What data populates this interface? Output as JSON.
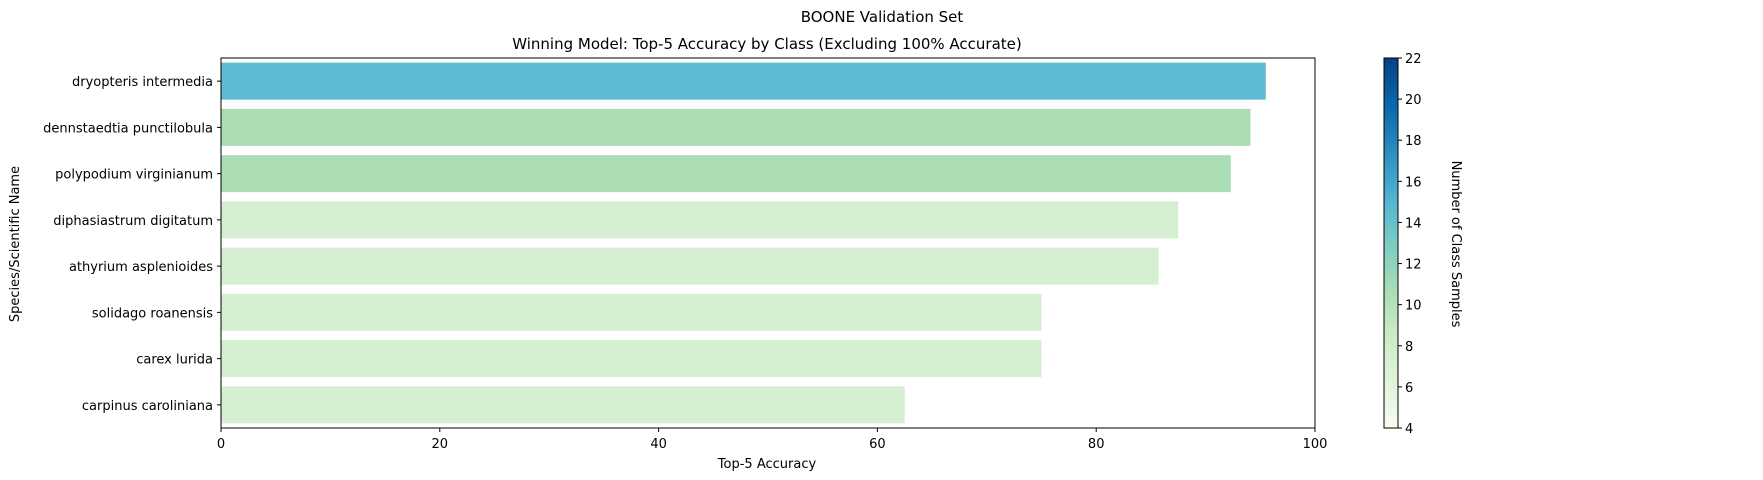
{
  "chart_data": {
    "type": "bar",
    "orientation": "horizontal",
    "suptitle": "BOONE Validation Set",
    "title": "Winning Model: Top-5 Accuracy by Class (Excluding 100% Accurate)",
    "xlabel": "Top-5 Accuracy",
    "ylabel": "Species/Scientific Name",
    "xlim": [
      0,
      100
    ],
    "xticks": [
      0,
      20,
      40,
      60,
      80,
      100
    ],
    "categories": [
      "dryopteris intermedia",
      "dennstaedtia punctilobula",
      "polypodium virginianum",
      "diphasiastrum digitatum",
      "athyrium asplenioides",
      "solidago roanensis",
      "carex lurida",
      "carpinus caroliniana"
    ],
    "values": [
      95.5,
      94.1,
      92.3,
      87.5,
      85.7,
      75.0,
      75.0,
      62.5
    ],
    "sample_counts": [
      14,
      10,
      10,
      6,
      6,
      6,
      6,
      6
    ],
    "bar_colors": [
      "#5fbbd1",
      "#acdeb6",
      "#acdeb6",
      "#d6efd2",
      "#d6efd2",
      "#d6efd2",
      "#d6efd2",
      "#d6efd2"
    ],
    "colorbar": {
      "label": "Number of Class Samples",
      "min": 4,
      "max": 22,
      "ticks": [
        4,
        6,
        8,
        10,
        12,
        14,
        16,
        18,
        20,
        22
      ],
      "colormap": "GnBu",
      "colors": [
        "#f7fcf0",
        "#e0f3db",
        "#ccebc5",
        "#a8ddb5",
        "#7bccc4",
        "#4eb3d3",
        "#2b8cbe",
        "#0868ac",
        "#084081"
      ]
    },
    "grid": false
  }
}
